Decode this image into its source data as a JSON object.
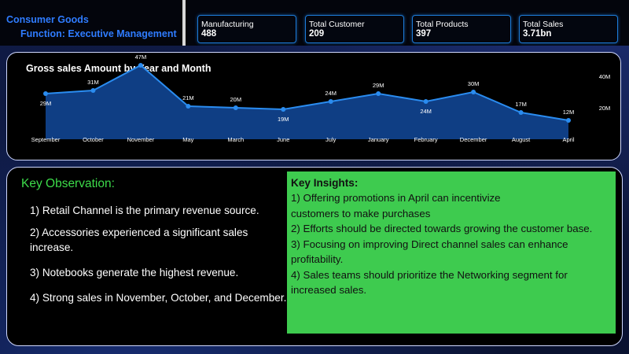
{
  "header": {
    "company": "Consumer Goods",
    "function": "Function: Executive Management",
    "kpis": [
      {
        "label": "Manufacturing",
        "value": "488"
      },
      {
        "label": "Total Customer",
        "value": "209"
      },
      {
        "label": "Total Products",
        "value": "397"
      },
      {
        "label": "Total Sales",
        "value": "3.71bn"
      }
    ]
  },
  "chart_data": {
    "type": "area",
    "title": "Gross sales Amount by Year and Month",
    "xlabel": "",
    "ylabel": "",
    "categories": [
      "September",
      "October",
      "November",
      "May",
      "March",
      "June",
      "July",
      "January",
      "February",
      "December",
      "August",
      "April"
    ],
    "values": [
      29,
      31,
      47,
      21,
      20,
      19,
      24,
      29,
      24,
      30,
      17,
      12
    ],
    "data_labels": [
      "29M",
      "31M",
      "47M",
      "21M",
      "20M",
      "19M",
      "24M",
      "29M",
      "24M",
      "30M",
      "17M",
      "12M"
    ],
    "y_ticks": [
      "40M",
      "20M"
    ],
    "ylim": [
      0,
      55
    ],
    "grid": false,
    "colors": {
      "line": "#2a8cf0",
      "fill": "#0f3e84",
      "point": "#2a8cf0"
    }
  },
  "observations": {
    "title": "Key Observation:",
    "items": [
      "1) Retail Channel is the primary revenue source.",
      "2) Accessories experienced a significant sales increase.",
      "3) Notebooks generate the highest revenue.",
      "4) Strong sales in November, October, and December."
    ]
  },
  "insights": {
    "title": "Key Insights:",
    "items": [
      "1) Offering promotions in April can incentivize customers to make purchases",
      "2) Efforts should be directed towards growing the customer base.",
      "3) Focusing on improving Direct channel sales can enhance profitability.",
      "4) Sales teams should prioritize the Networking segment for increased sales."
    ]
  }
}
